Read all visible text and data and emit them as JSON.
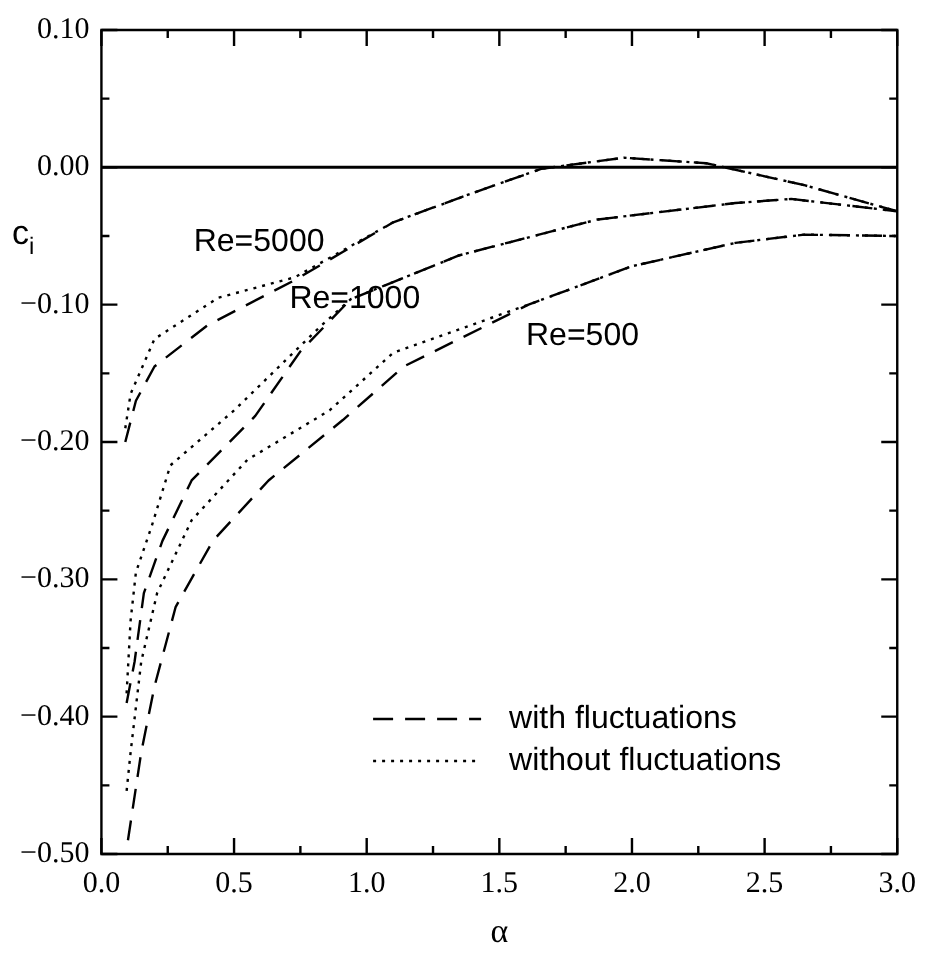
{
  "chart_data": {
    "type": "line",
    "xlabel": "α",
    "ylabel": "c$_{i}$",
    "xlim": [
      0,
      3
    ],
    "ylim": [
      -0.5,
      0.1
    ],
    "xticks": [
      {
        "value": 0,
        "label": "0.0"
      },
      {
        "value": 0.25,
        "label": null
      },
      {
        "value": 0.5,
        "label": "0.5"
      },
      {
        "value": 0.75,
        "label": null
      },
      {
        "value": 1,
        "label": "1.0"
      },
      {
        "value": 1.25,
        "label": null
      },
      {
        "value": 1.5,
        "label": "1.5"
      },
      {
        "value": 1.75,
        "label": null
      },
      {
        "value": 2,
        "label": "2.0"
      },
      {
        "value": 2.25,
        "label": null
      },
      {
        "value": 2.5,
        "label": "2.5"
      },
      {
        "value": 2.75,
        "label": null
      },
      {
        "value": 3,
        "label": "3.0"
      }
    ],
    "yticks": [
      {
        "value": -0.5,
        "label": "−0.50"
      },
      {
        "value": -0.45,
        "label": null
      },
      {
        "value": -0.4,
        "label": "−0.40"
      },
      {
        "value": -0.35,
        "label": null
      },
      {
        "value": -0.3,
        "label": "−0.30"
      },
      {
        "value": -0.25,
        "label": null
      },
      {
        "value": -0.2,
        "label": "−0.20"
      },
      {
        "value": -0.15,
        "label": null
      },
      {
        "value": -0.1,
        "label": "−0.10"
      },
      {
        "value": -0.05,
        "label": null
      },
      {
        "value": 0,
        "label": "0.00"
      },
      {
        "value": 0.05,
        "label": null
      },
      {
        "value": 0.1,
        "label": "0.10"
      }
    ],
    "grid": false,
    "legend": "bottom right",
    "marker": "none",
    "series": [
      {
        "name": "with fluctuations",
        "color": "#000000",
        "line_style": "dashed",
        "x": [
          0.09,
          0.13,
          0.2,
          0.4,
          0.73,
          1.1,
          1.41,
          1.66,
          1.97,
          2.28,
          2.65,
          3.0
        ],
        "values": [
          -0.2,
          -0.17,
          -0.145,
          -0.115,
          -0.082,
          -0.04,
          -0.018,
          -0.001,
          0.007,
          0.003,
          -0.013,
          -0.032
        ]
      },
      {
        "name": "without fluctuations",
        "color": "#000000",
        "line_style": "dotted",
        "x": [
          0.09,
          0.11,
          0.2,
          0.44,
          0.73,
          1.1,
          1.41,
          1.66,
          1.97,
          2.28,
          2.65,
          3.0
        ],
        "values": [
          -0.19,
          -0.165,
          -0.125,
          -0.095,
          -0.08,
          -0.04,
          -0.018,
          -0.001,
          0.007,
          0.003,
          -0.013,
          -0.032
        ]
      },
      {
        "color": "#000000",
        "line_style": "dashed",
        "x": [
          0.095,
          0.125,
          0.16,
          0.23,
          0.34,
          0.58,
          0.75,
          0.94,
          1.35,
          1.87,
          2.39,
          2.6,
          3.0
        ],
        "values": [
          -0.39,
          -0.36,
          -0.31,
          -0.272,
          -0.228,
          -0.181,
          -0.134,
          -0.096,
          -0.064,
          -0.038,
          -0.026,
          -0.023,
          -0.032
        ]
      },
      {
        "color": "#000000",
        "line_style": "dotted",
        "x": [
          0.095,
          0.11,
          0.13,
          0.19,
          0.26,
          0.5,
          0.83,
          0.94,
          1.35,
          1.87,
          2.39,
          2.6,
          3.0
        ],
        "values": [
          -0.383,
          -0.33,
          -0.295,
          -0.261,
          -0.217,
          -0.177,
          -0.115,
          -0.096,
          -0.064,
          -0.038,
          -0.026,
          -0.023,
          -0.032
        ]
      },
      {
        "color": "#000000",
        "line_style": "dashed",
        "x": [
          0.1,
          0.15,
          0.2,
          0.28,
          0.42,
          0.63,
          0.91,
          1.14,
          1.61,
          2.0,
          2.39,
          2.65,
          3.0
        ],
        "values": [
          -0.49,
          -0.426,
          -0.378,
          -0.32,
          -0.272,
          -0.228,
          -0.184,
          -0.145,
          -0.1,
          -0.072,
          -0.055,
          -0.049,
          -0.05
        ]
      },
      {
        "color": "#000000",
        "line_style": "dotted",
        "x": [
          0.095,
          0.11,
          0.15,
          0.21,
          0.34,
          0.55,
          0.86,
          1.1,
          1.61,
          2.0,
          2.39,
          2.65,
          3.0
        ],
        "values": [
          -0.454,
          -0.426,
          -0.36,
          -0.31,
          -0.257,
          -0.213,
          -0.177,
          -0.135,
          -0.1,
          -0.072,
          -0.055,
          -0.049,
          -0.05
        ]
      }
    ],
    "ref_lines": [
      {
        "axis": "y",
        "value": 0,
        "color": "#000000",
        "line_style": "solid"
      }
    ],
    "annotations": [
      {
        "text": "Re=5000",
        "x": 0.73,
        "y": -0.082
      },
      {
        "text": "Re=1000",
        "x": 0.94,
        "y": -0.096
      },
      {
        "text": "Re=500",
        "x": 1.61,
        "y": -0.1
      }
    ]
  }
}
